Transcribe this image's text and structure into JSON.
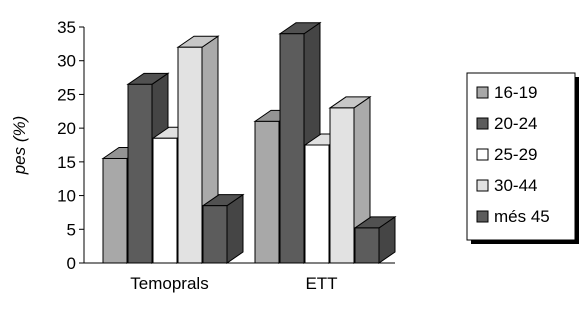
{
  "chart_data": {
    "type": "bar",
    "categories": [
      "Temoprals",
      "ETT"
    ],
    "series": [
      {
        "name": "16-19",
        "values": [
          15.5,
          21
        ],
        "color": "#a8a8a8"
      },
      {
        "name": "20-24",
        "values": [
          26.5,
          34
        ],
        "color": "#5c5c5c"
      },
      {
        "name": "25-29",
        "values": [
          18.5,
          17.5
        ],
        "color": "#ffffff"
      },
      {
        "name": "30-44",
        "values": [
          32,
          23
        ],
        "color": "#e2e2e2"
      },
      {
        "name": "més 45",
        "values": [
          8.5,
          5.2
        ],
        "color": "#5c5c5c"
      }
    ],
    "ylabel": "pes (%)",
    "xlabel": "",
    "ylim": [
      0,
      35
    ],
    "yticks": [
      "0",
      "5",
      "10",
      "15",
      "20",
      "25",
      "30",
      "35"
    ],
    "grid": false,
    "legend_position": "right",
    "style": "3d"
  }
}
